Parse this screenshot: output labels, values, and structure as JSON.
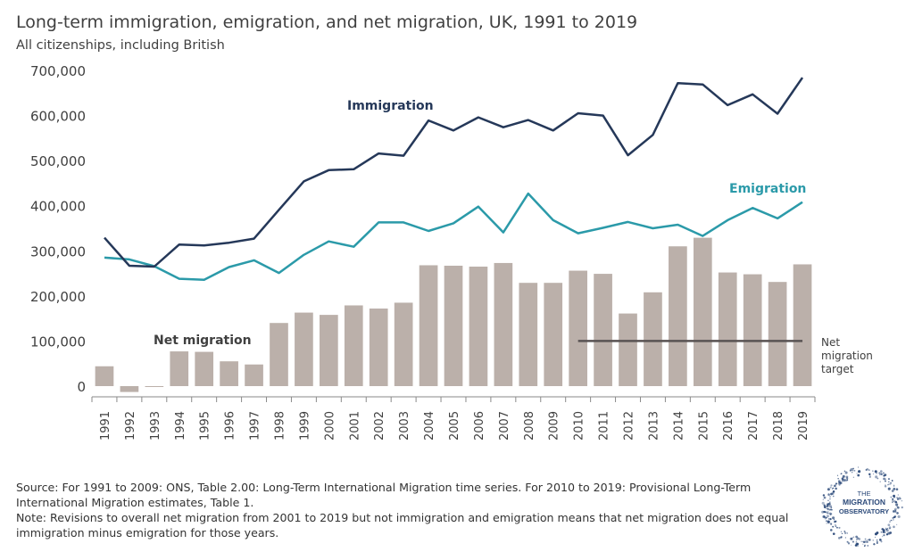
{
  "header": {
    "title": "Long-term immigration, emigration, and net migration, UK, 1991 to 2019",
    "subtitle": "All citizenships, including British"
  },
  "chart_data": {
    "type": "bar+line",
    "title": "Long-term immigration, emigration, and net migration, UK, 1991 to 2019",
    "subtitle": "All citizenships, including British",
    "ylim": [
      -20000,
      700000
    ],
    "yticks": [
      0,
      100000,
      200000,
      300000,
      400000,
      500000,
      600000,
      700000
    ],
    "ytick_labels": [
      "0",
      "100,000",
      "200,000",
      "300,000",
      "400,000",
      "500,000",
      "600,000",
      "700,000"
    ],
    "categories": [
      "1991",
      "1992",
      "1993",
      "1994",
      "1995",
      "1996",
      "1997",
      "1998",
      "1999",
      "2000",
      "2001",
      "2002",
      "2003",
      "2004",
      "2005",
      "2006",
      "2007",
      "2008",
      "2009",
      "2010",
      "2011",
      "2012",
      "2013",
      "2014",
      "2015",
      "2016",
      "2017",
      "2018",
      "2019"
    ],
    "grid": false,
    "series": [
      {
        "name": "Net migration",
        "kind": "bar",
        "color": "#bbb0aa",
        "values": [
          44000,
          -13000,
          -1000,
          77000,
          76000,
          55000,
          48000,
          140000,
          163000,
          158000,
          179000,
          172000,
          185000,
          268000,
          267000,
          265000,
          273000,
          229000,
          229000,
          256000,
          249000,
          161000,
          208000,
          310000,
          329000,
          252000,
          248000,
          231000,
          270000
        ]
      },
      {
        "name": "Immigration",
        "kind": "line",
        "color": "#253859",
        "values": [
          329000,
          267000,
          265000,
          314000,
          312000,
          318000,
          327000,
          391000,
          454000,
          479000,
          481000,
          516000,
          511000,
          589000,
          567000,
          596000,
          574000,
          590000,
          567000,
          605000,
          600000,
          512000,
          557000,
          672000,
          669000,
          623000,
          647000,
          604000,
          684000
        ]
      },
      {
        "name": "Emigration",
        "kind": "line",
        "color": "#2b9aa9",
        "values": [
          285000,
          281000,
          266000,
          238000,
          236000,
          264000,
          279000,
          251000,
          291000,
          321000,
          309000,
          363000,
          363000,
          344000,
          361000,
          398000,
          341000,
          427000,
          368000,
          339000,
          351000,
          364000,
          350000,
          358000,
          333000,
          368000,
          395000,
          372000,
          408000
        ]
      }
    ],
    "reference_line": {
      "name": "Net migration target",
      "value": 100000,
      "from": "2010",
      "to": "2019",
      "color": "#595353"
    },
    "annotations": [
      {
        "text": "Immigration",
        "color": "#253859"
      },
      {
        "text": "Emigration",
        "color": "#2b9aa9"
      },
      {
        "text": "Net migration",
        "color": "#404040"
      },
      {
        "text": "Net migration target",
        "lines": [
          "Net",
          "migration",
          "target"
        ],
        "color": "#404040"
      }
    ]
  },
  "source": {
    "line1": "Source: For 1991 to 2009: ONS, Table 2.00: Long-Term International Migration time series. For 2010 to 2019: Provisional Long-Term International Migration estimates, Table 1.",
    "line2": "Note: Revisions to overall net migration from 2001 to 2019 but not immigration and emigration means that net migration does not equal immigration minus emigration for those years."
  },
  "logo": {
    "line1": "THE",
    "line2": "MIGRATION",
    "line3": "OBSERVATORY",
    "color": "#2c4a7a"
  }
}
